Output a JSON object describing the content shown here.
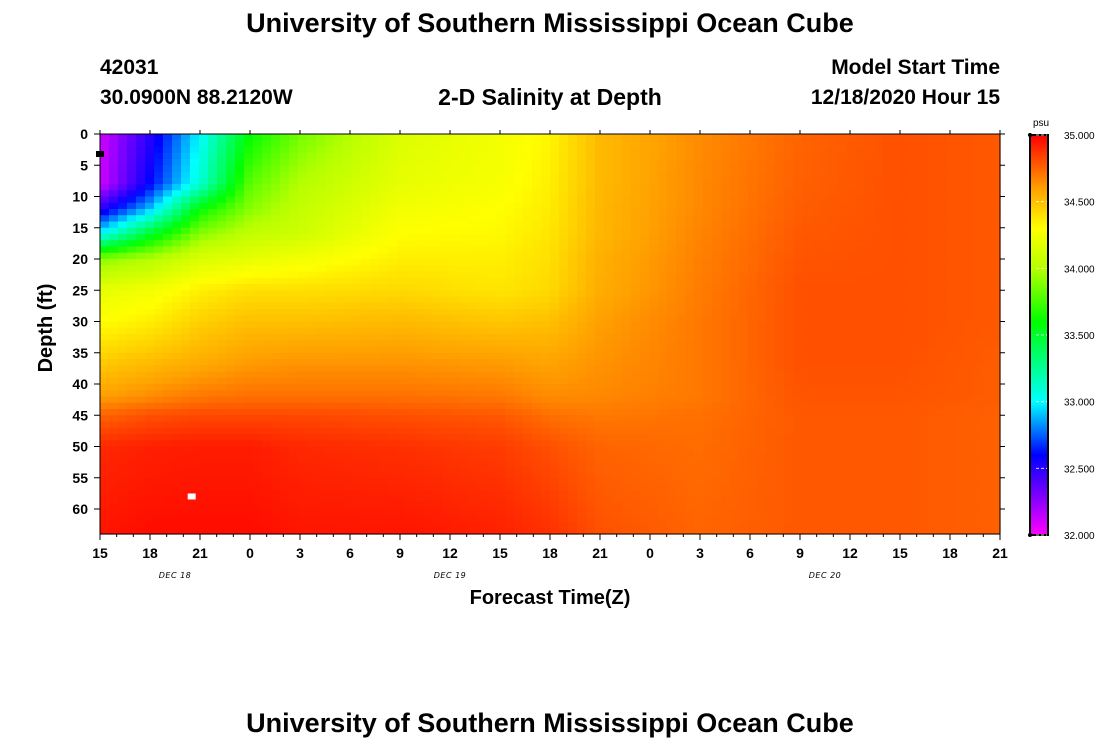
{
  "header": {
    "title_top": "University of Southern Mississippi Ocean Cube",
    "title_bottom": "University of Southern Mississippi Ocean Cube",
    "station_id": "42031",
    "station_coords": "30.0900N 88.2120W",
    "plot_name": "2-D Salinity at Depth",
    "model_start_label": "Model Start Time",
    "model_start_value": "12/18/2020 Hour 15"
  },
  "chart_data": {
    "type": "heatmap",
    "title": "2-D Salinity at Depth",
    "xlabel": "Forecast Time(Z)",
    "ylabel": "Depth (ft)",
    "x_hours_range": [
      0,
      54
    ],
    "ylim": [
      0,
      64
    ],
    "x_ticks": [
      "15",
      "18",
      "21",
      "0",
      "3",
      "6",
      "9",
      "12",
      "15",
      "18",
      "21",
      "0",
      "3",
      "6",
      "9",
      "12",
      "15",
      "18",
      "21"
    ],
    "y_ticks": [
      "0",
      "5",
      "10",
      "15",
      "20",
      "25",
      "30",
      "35",
      "40",
      "45",
      "50",
      "55",
      "60"
    ],
    "date_labels": [
      {
        "text": "DEC 18",
        "hour_offset": 4.5
      },
      {
        "text": "DEC 19",
        "hour_offset": 21
      },
      {
        "text": "DEC 20",
        "hour_offset": 43.5
      }
    ],
    "colorbar": {
      "unit": "psu",
      "min": 32.0,
      "max": 35.0,
      "tick_labels": [
        "35.000",
        "34.500",
        "34.000",
        "33.500",
        "33.000",
        "32.500",
        "32.000"
      ]
    },
    "colors": {
      "c32_0": "#ff00ff",
      "c32_3": "#7a00ff",
      "c32_6": "#0000ff",
      "c33_0": "#00ffff",
      "c33_6": "#00ff00",
      "c34_0": "#b6ff00",
      "c34_3": "#ffff00",
      "c34_6": "#ffa000",
      "c34_8": "#ff5000",
      "c35_0": "#ff0000"
    },
    "salinity_field": [
      {
        "hour": 0,
        "values": [
          [
            0,
            32.1
          ],
          [
            8,
            32.1
          ],
          [
            12,
            32.5
          ],
          [
            16,
            33.0
          ],
          [
            20,
            33.9
          ],
          [
            25,
            34.2
          ],
          [
            30,
            34.3
          ],
          [
            36,
            34.45
          ],
          [
            42,
            34.6
          ],
          [
            45,
            34.75
          ],
          [
            50,
            34.9
          ],
          [
            64,
            34.95
          ]
        ]
      },
      {
        "hour": 3,
        "values": [
          [
            0,
            32.5
          ],
          [
            8,
            32.6
          ],
          [
            12,
            32.9
          ],
          [
            16,
            33.5
          ],
          [
            20,
            34.0
          ],
          [
            25,
            34.25
          ],
          [
            30,
            34.35
          ],
          [
            36,
            34.5
          ],
          [
            42,
            34.65
          ],
          [
            45,
            34.8
          ],
          [
            50,
            34.92
          ],
          [
            64,
            34.97
          ]
        ]
      },
      {
        "hour": 6,
        "values": [
          [
            0,
            33.0
          ],
          [
            8,
            33.1
          ],
          [
            12,
            33.6
          ],
          [
            16,
            33.9
          ],
          [
            20,
            34.15
          ],
          [
            25,
            34.35
          ],
          [
            30,
            34.45
          ],
          [
            36,
            34.55
          ],
          [
            42,
            34.7
          ],
          [
            45,
            34.82
          ],
          [
            50,
            34.93
          ],
          [
            64,
            34.97
          ]
        ]
      },
      {
        "hour": 9,
        "values": [
          [
            0,
            33.6
          ],
          [
            8,
            33.8
          ],
          [
            12,
            33.9
          ],
          [
            16,
            34.05
          ],
          [
            20,
            34.2
          ],
          [
            25,
            34.4
          ],
          [
            30,
            34.5
          ],
          [
            36,
            34.6
          ],
          [
            42,
            34.72
          ],
          [
            45,
            34.82
          ],
          [
            50,
            34.93
          ],
          [
            64,
            34.97
          ]
        ]
      },
      {
        "hour": 12,
        "values": [
          [
            0,
            33.85
          ],
          [
            8,
            34.0
          ],
          [
            12,
            34.05
          ],
          [
            16,
            34.1
          ],
          [
            20,
            34.25
          ],
          [
            25,
            34.4
          ],
          [
            30,
            34.5
          ],
          [
            36,
            34.62
          ],
          [
            42,
            34.72
          ],
          [
            45,
            34.82
          ],
          [
            50,
            34.9
          ],
          [
            64,
            34.95
          ]
        ]
      },
      {
        "hour": 18,
        "values": [
          [
            0,
            34.15
          ],
          [
            8,
            34.2
          ],
          [
            12,
            34.25
          ],
          [
            16,
            34.3
          ],
          [
            20,
            34.35
          ],
          [
            25,
            34.42
          ],
          [
            30,
            34.52
          ],
          [
            36,
            34.62
          ],
          [
            42,
            34.72
          ],
          [
            45,
            34.8
          ],
          [
            50,
            34.88
          ],
          [
            64,
            34.95
          ]
        ]
      },
      {
        "hour": 24,
        "values": [
          [
            0,
            34.25
          ],
          [
            8,
            34.27
          ],
          [
            12,
            34.3
          ],
          [
            16,
            34.32
          ],
          [
            20,
            34.35
          ],
          [
            25,
            34.38
          ],
          [
            30,
            34.48
          ],
          [
            36,
            34.6
          ],
          [
            42,
            34.7
          ],
          [
            45,
            34.78
          ],
          [
            50,
            34.85
          ],
          [
            64,
            34.92
          ]
        ]
      },
      {
        "hour": 27,
        "values": [
          [
            0,
            34.33
          ],
          [
            8,
            34.35
          ],
          [
            12,
            34.36
          ],
          [
            16,
            34.38
          ],
          [
            20,
            34.4
          ],
          [
            25,
            34.42
          ],
          [
            30,
            34.5
          ],
          [
            36,
            34.58
          ],
          [
            42,
            34.65
          ],
          [
            45,
            34.72
          ],
          [
            50,
            34.8
          ],
          [
            64,
            34.88
          ]
        ]
      },
      {
        "hour": 30,
        "values": [
          [
            0,
            34.52
          ],
          [
            8,
            34.52
          ],
          [
            12,
            34.53
          ],
          [
            16,
            34.53
          ],
          [
            20,
            34.55
          ],
          [
            25,
            34.56
          ],
          [
            30,
            34.6
          ],
          [
            36,
            34.63
          ],
          [
            42,
            34.66
          ],
          [
            45,
            34.7
          ],
          [
            50,
            34.75
          ],
          [
            64,
            34.8
          ]
        ]
      },
      {
        "hour": 36,
        "values": [
          [
            0,
            34.65
          ],
          [
            8,
            34.66
          ],
          [
            12,
            34.66
          ],
          [
            16,
            34.67
          ],
          [
            20,
            34.68
          ],
          [
            25,
            34.69
          ],
          [
            30,
            34.7
          ],
          [
            36,
            34.7
          ],
          [
            42,
            34.7
          ],
          [
            45,
            34.72
          ],
          [
            50,
            34.73
          ],
          [
            64,
            34.75
          ]
        ]
      },
      {
        "hour": 42,
        "values": [
          [
            0,
            34.75
          ],
          [
            8,
            34.76
          ],
          [
            12,
            34.77
          ],
          [
            16,
            34.78
          ],
          [
            20,
            34.79
          ],
          [
            25,
            34.8
          ],
          [
            30,
            34.8
          ],
          [
            36,
            34.8
          ],
          [
            42,
            34.79
          ],
          [
            45,
            34.78
          ],
          [
            50,
            34.78
          ],
          [
            64,
            34.78
          ]
        ]
      },
      {
        "hour": 48,
        "values": [
          [
            0,
            34.8
          ],
          [
            8,
            34.8
          ],
          [
            12,
            34.8
          ],
          [
            16,
            34.8
          ],
          [
            20,
            34.8
          ],
          [
            25,
            34.8
          ],
          [
            30,
            34.8
          ],
          [
            36,
            34.8
          ],
          [
            42,
            34.79
          ],
          [
            45,
            34.78
          ],
          [
            50,
            34.78
          ],
          [
            64,
            34.78
          ]
        ]
      },
      {
        "hour": 54,
        "values": [
          [
            0,
            34.78
          ],
          [
            8,
            34.78
          ],
          [
            12,
            34.78
          ],
          [
            16,
            34.78
          ],
          [
            20,
            34.78
          ],
          [
            25,
            34.78
          ],
          [
            30,
            34.78
          ],
          [
            36,
            34.77
          ],
          [
            42,
            34.77
          ],
          [
            45,
            34.76
          ],
          [
            50,
            34.76
          ],
          [
            64,
            34.76
          ]
        ]
      }
    ],
    "markers": [
      {
        "hour": 0,
        "depth": 3.2,
        "color": "#000000",
        "kind": "marker"
      },
      {
        "hour": 5.5,
        "depth": 58.0,
        "color": "#ffffff",
        "kind": "marker"
      }
    ]
  }
}
